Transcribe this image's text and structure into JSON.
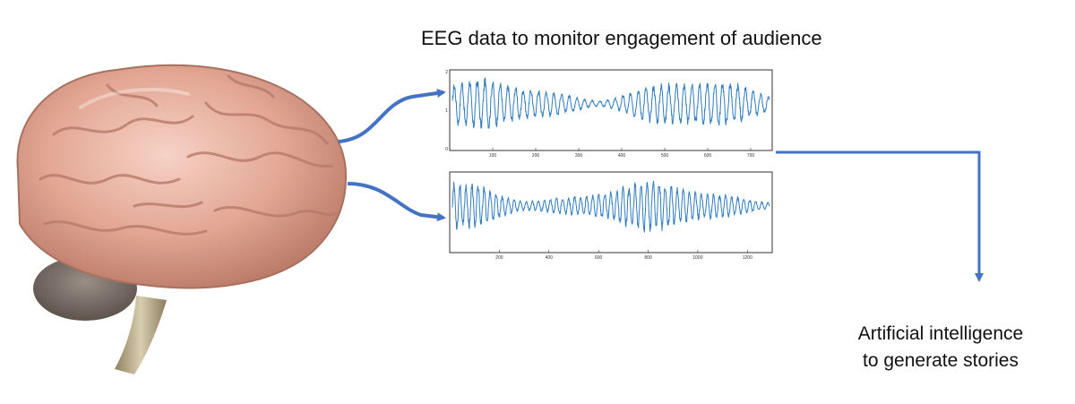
{
  "diagram": {
    "title": "EEG data to monitor engagement of audience",
    "output_label_lines": [
      "Artificial intelligence",
      "to generate stories"
    ],
    "signal_color": "#2f7bbf",
    "arrow_color": "#4472c4",
    "brain_color": "#e7b1a0",
    "eeg_panels": [
      {
        "id": "top",
        "x_ticks": [
          "100",
          "200",
          "300",
          "400",
          "500",
          "600",
          "700"
        ],
        "y_ticks": [
          "2",
          "1",
          "0"
        ]
      },
      {
        "id": "bottom",
        "x_ticks": [
          "200",
          "400",
          "600",
          "800",
          "1000",
          "1200"
        ],
        "y_ticks": []
      }
    ]
  }
}
